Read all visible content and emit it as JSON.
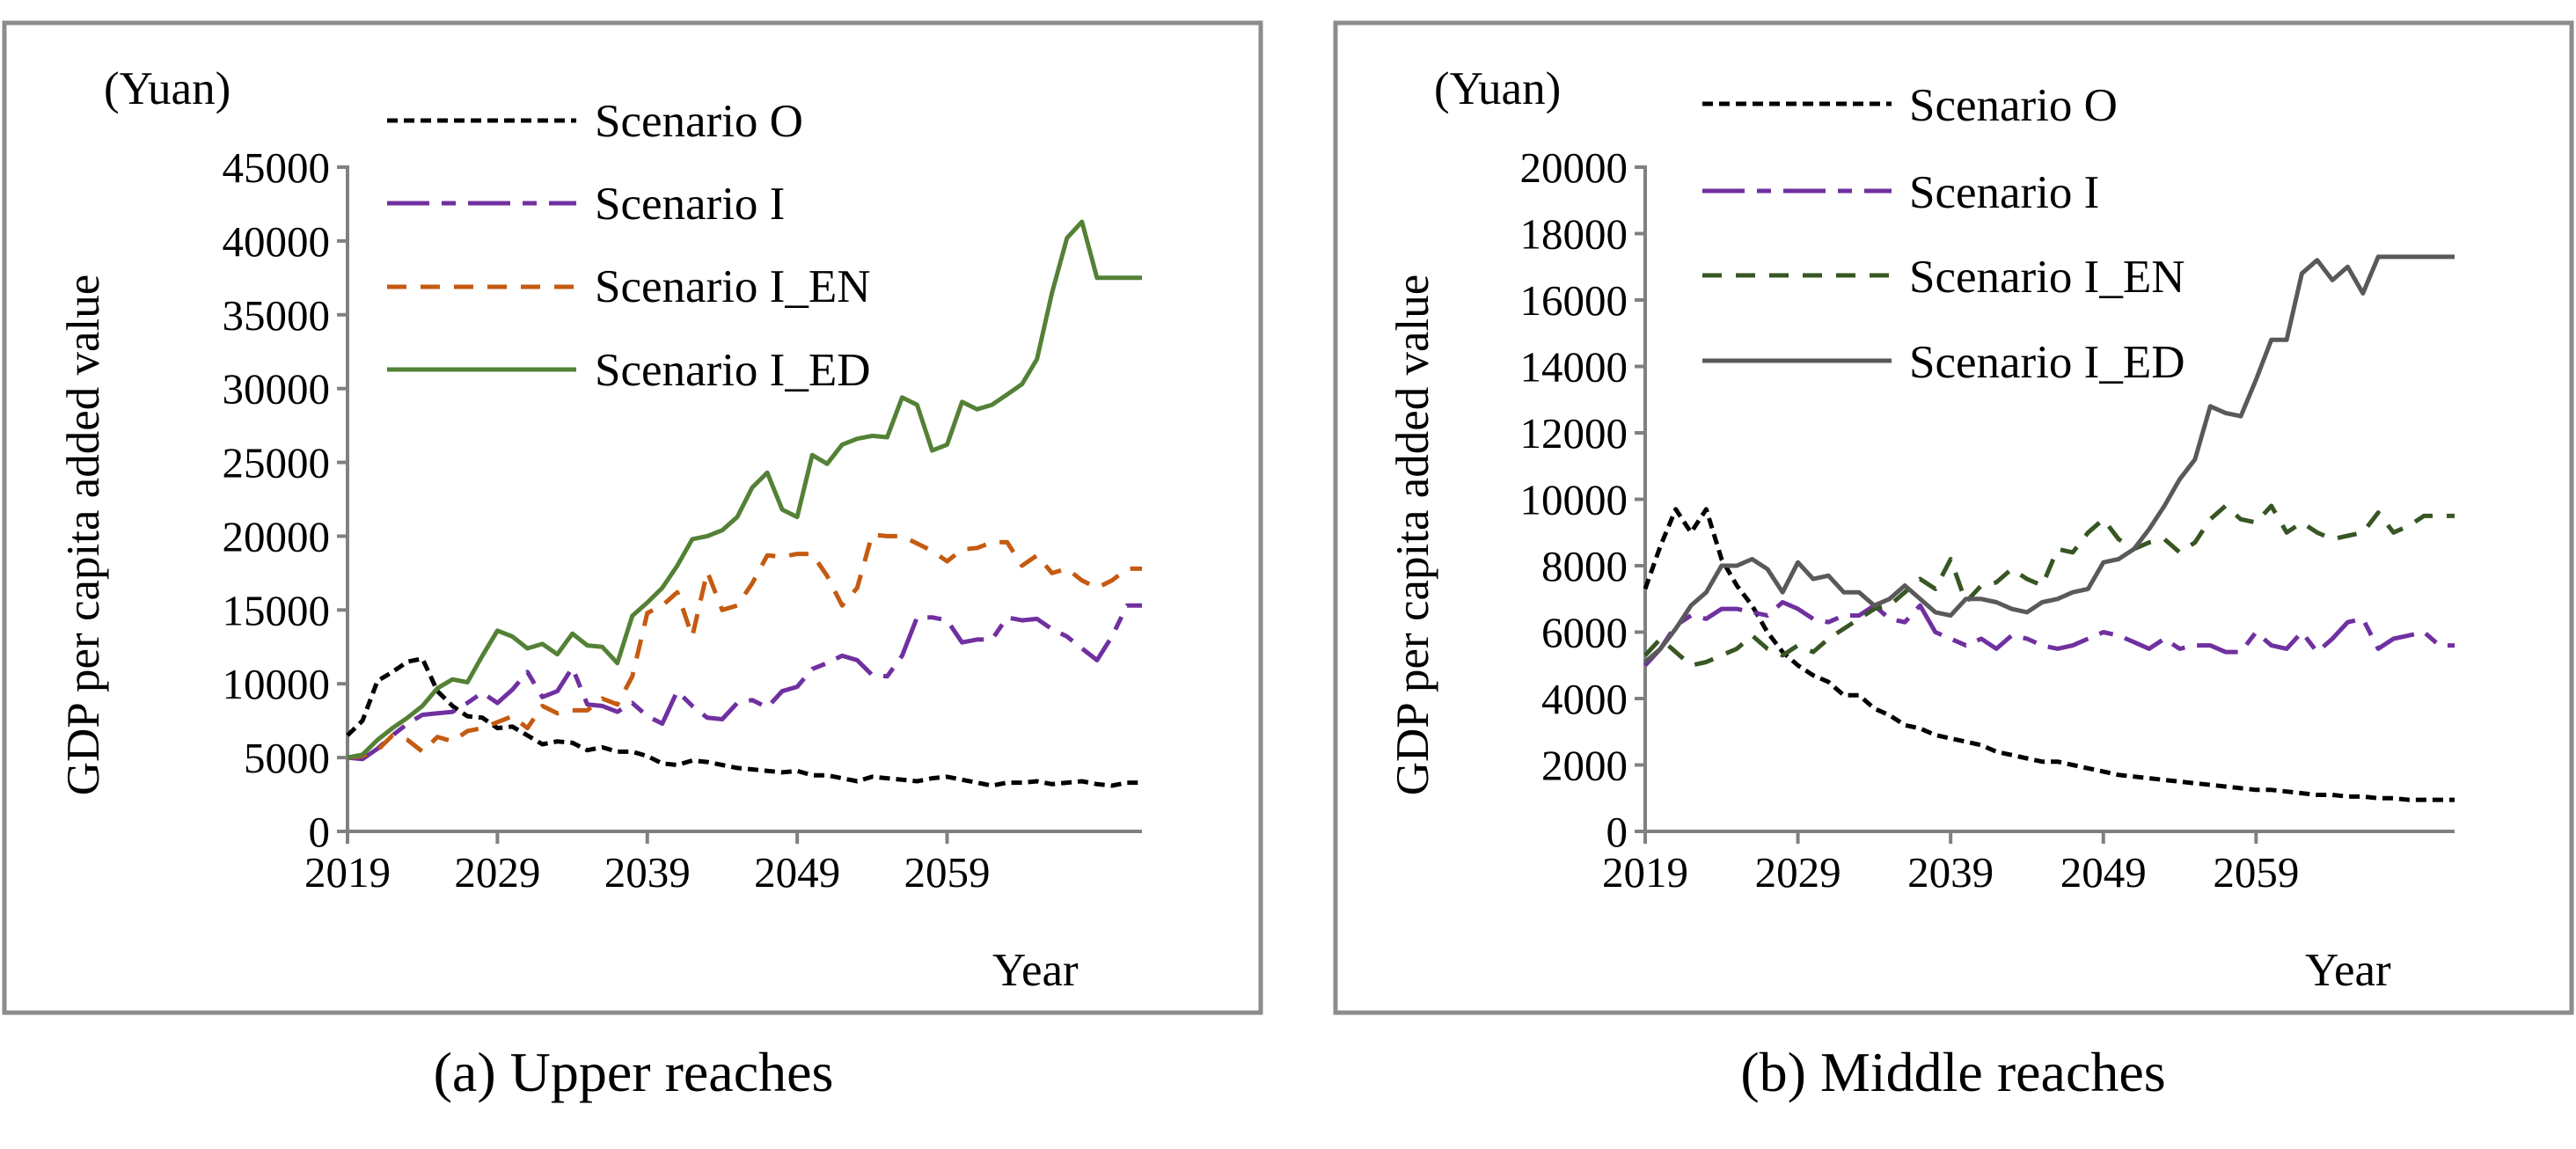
{
  "chart_data": [
    {
      "type": "line",
      "caption": "(a) Upper reaches",
      "unit": "(Yuan)",
      "xlabel": "Year",
      "ylabel": "GDP per capita added value",
      "xlim": [
        2019,
        2072
      ],
      "ylim": [
        0,
        45000
      ],
      "ytick_values": [
        0,
        5000,
        10000,
        15000,
        20000,
        25000,
        30000,
        35000,
        40000,
        45000
      ],
      "ytick_labels": [
        "0",
        "5000",
        "10000",
        "15000",
        "20000",
        "25000",
        "30000",
        "35000",
        "40000",
        "45000"
      ],
      "xtick_values": [
        2019,
        2029,
        2039,
        2049,
        2059
      ],
      "xtick_labels": [
        "2019",
        "2029",
        "2039",
        "2049",
        "2059"
      ],
      "series": [
        {
          "name": "Scenario O",
          "color": "#000000",
          "dash": "dash-short",
          "x": [
            2019,
            2020,
            2021,
            2022,
            2023,
            2024,
            2025,
            2026,
            2027,
            2028,
            2029,
            2030,
            2031,
            2032,
            2033,
            2034,
            2035,
            2036,
            2037,
            2038,
            2039,
            2040,
            2041,
            2042,
            2043,
            2044,
            2045,
            2046,
            2047,
            2048,
            2049,
            2050,
            2051,
            2052,
            2053,
            2054,
            2055,
            2056,
            2057,
            2058,
            2059,
            2060,
            2061,
            2062,
            2063,
            2064,
            2065,
            2066,
            2067,
            2068,
            2069,
            2070,
            2071,
            2072
          ],
          "values": [
            6500,
            7500,
            10200,
            10800,
            11500,
            11700,
            9500,
            8500,
            7800,
            7700,
            7000,
            7100,
            6500,
            5900,
            6100,
            6000,
            5500,
            5700,
            5400,
            5400,
            5100,
            4600,
            4500,
            4800,
            4700,
            4500,
            4300,
            4200,
            4100,
            4000,
            4100,
            3800,
            3800,
            3600,
            3400,
            3700,
            3600,
            3500,
            3400,
            3600,
            3700,
            3500,
            3300,
            3100,
            3300,
            3300,
            3400,
            3200,
            3300,
            3400,
            3200,
            3100,
            3300,
            3300
          ]
        },
        {
          "name": "Scenario I",
          "color": "#7030a0",
          "dash": "dash-long",
          "x": [
            2019,
            2020,
            2021,
            2022,
            2023,
            2024,
            2025,
            2026,
            2027,
            2028,
            2029,
            2030,
            2031,
            2032,
            2033,
            2034,
            2035,
            2036,
            2037,
            2038,
            2039,
            2040,
            2041,
            2042,
            2043,
            2044,
            2045,
            2046,
            2047,
            2048,
            2049,
            2050,
            2051,
            2052,
            2053,
            2054,
            2055,
            2056,
            2057,
            2058,
            2059,
            2060,
            2061,
            2062,
            2063,
            2064,
            2065,
            2066,
            2067,
            2068,
            2069,
            2070,
            2071,
            2072
          ],
          "values": [
            5000,
            4900,
            5600,
            6500,
            7300,
            7900,
            8000,
            8100,
            8700,
            9400,
            8700,
            9600,
            10800,
            9100,
            9500,
            11100,
            8600,
            8500,
            8100,
            8700,
            7800,
            7300,
            9500,
            8500,
            7700,
            7600,
            8700,
            8900,
            8400,
            9500,
            9800,
            11000,
            11400,
            11900,
            11600,
            10600,
            10500,
            11900,
            14500,
            14500,
            14300,
            12800,
            13000,
            13000,
            14500,
            14300,
            14400,
            13700,
            13200,
            12400,
            11600,
            13200,
            15300,
            15300
          ]
        },
        {
          "name": "Scenario I_EN",
          "color": "#c55a11",
          "dash": "dash-medium",
          "x": [
            2019,
            2020,
            2021,
            2022,
            2023,
            2024,
            2025,
            2026,
            2027,
            2028,
            2029,
            2030,
            2031,
            2032,
            2033,
            2034,
            2035,
            2036,
            2037,
            2038,
            2039,
            2040,
            2041,
            2042,
            2043,
            2044,
            2045,
            2046,
            2047,
            2048,
            2049,
            2050,
            2051,
            2052,
            2053,
            2054,
            2055,
            2056,
            2057,
            2058,
            2059,
            2060,
            2061,
            2062,
            2063,
            2064,
            2065,
            2066,
            2067,
            2068,
            2069,
            2070,
            2071,
            2072
          ],
          "values": [
            5000,
            5100,
            5500,
            6500,
            6200,
            5400,
            6400,
            6100,
            6800,
            7000,
            7400,
            7800,
            7000,
            8500,
            8000,
            8200,
            8200,
            9000,
            8600,
            10500,
            14800,
            15300,
            16200,
            13200,
            17600,
            15000,
            15300,
            16800,
            18700,
            18600,
            18800,
            18800,
            17300,
            15300,
            16500,
            20100,
            20000,
            20000,
            19500,
            19000,
            18300,
            19100,
            19200,
            19600,
            19600,
            18000,
            18700,
            17500,
            17800,
            17000,
            16500,
            17000,
            17800,
            17800
          ]
        },
        {
          "name": "Scenario I_ED",
          "color": "#538135",
          "dash": "solid",
          "x": [
            2019,
            2020,
            2021,
            2022,
            2023,
            2024,
            2025,
            2026,
            2027,
            2028,
            2029,
            2030,
            2031,
            2032,
            2033,
            2034,
            2035,
            2036,
            2037,
            2038,
            2039,
            2040,
            2041,
            2042,
            2043,
            2044,
            2045,
            2046,
            2047,
            2048,
            2049,
            2050,
            2051,
            2052,
            2053,
            2054,
            2055,
            2056,
            2057,
            2058,
            2059,
            2060,
            2061,
            2062,
            2063,
            2064,
            2065,
            2066,
            2067,
            2068,
            2069,
            2070,
            2071,
            2072
          ],
          "values": [
            5000,
            5200,
            6200,
            7000,
            7700,
            8500,
            9700,
            10300,
            10100,
            11900,
            13600,
            13200,
            12400,
            12700,
            12000,
            13400,
            12600,
            12500,
            11400,
            14600,
            15500,
            16500,
            18000,
            19800,
            20000,
            20400,
            21300,
            23300,
            24300,
            21800,
            21300,
            25500,
            24900,
            26200,
            26600,
            26800,
            26700,
            29400,
            28900,
            25800,
            26200,
            29100,
            28600,
            28900,
            29600,
            30300,
            32000,
            36500,
            40200,
            41300,
            37500,
            37500,
            37500,
            37500
          ]
        }
      ]
    },
    {
      "type": "line",
      "caption": "(b) Middle reaches",
      "unit": "(Yuan)",
      "xlabel": "Year",
      "ylabel": "GDP per capita added value",
      "xlim": [
        2019,
        2072
      ],
      "ylim": [
        0,
        20000
      ],
      "ytick_values": [
        0,
        2000,
        4000,
        6000,
        8000,
        10000,
        12000,
        14000,
        16000,
        18000,
        20000
      ],
      "ytick_labels": [
        "0",
        "2000",
        "4000",
        "6000",
        "8000",
        "10000",
        "12000",
        "14000",
        "16000",
        "18000",
        "20000"
      ],
      "xtick_values": [
        2019,
        2029,
        2039,
        2049,
        2059
      ],
      "xtick_labels": [
        "2019",
        "2029",
        "2039",
        "2049",
        "2059"
      ],
      "series": [
        {
          "name": "Scenario O",
          "color": "#000000",
          "dash": "dash-short",
          "x": [
            2019,
            2020,
            2021,
            2022,
            2023,
            2024,
            2025,
            2026,
            2027,
            2028,
            2029,
            2030,
            2031,
            2032,
            2033,
            2034,
            2035,
            2036,
            2037,
            2038,
            2039,
            2040,
            2041,
            2042,
            2043,
            2044,
            2045,
            2046,
            2047,
            2048,
            2049,
            2050,
            2051,
            2052,
            2053,
            2054,
            2055,
            2056,
            2057,
            2058,
            2059,
            2060,
            2061,
            2062,
            2063,
            2064,
            2065,
            2066,
            2067,
            2068,
            2069,
            2070,
            2071,
            2072
          ],
          "values": [
            7300,
            8600,
            9700,
            9000,
            9700,
            8200,
            7400,
            6800,
            6000,
            5400,
            5000,
            4700,
            4500,
            4100,
            4100,
            3700,
            3500,
            3200,
            3100,
            2900,
            2800,
            2700,
            2600,
            2400,
            2300,
            2200,
            2100,
            2100,
            2000,
            1900,
            1800,
            1700,
            1650,
            1600,
            1550,
            1500,
            1450,
            1400,
            1350,
            1300,
            1250,
            1250,
            1200,
            1150,
            1100,
            1100,
            1050,
            1050,
            1000,
            1000,
            950,
            950,
            950,
            950
          ]
        },
        {
          "name": "Scenario I",
          "color": "#7030a0",
          "dash": "dash-long",
          "x": [
            2019,
            2020,
            2021,
            2022,
            2023,
            2024,
            2025,
            2026,
            2027,
            2028,
            2029,
            2030,
            2031,
            2032,
            2033,
            2034,
            2035,
            2036,
            2037,
            2038,
            2039,
            2040,
            2041,
            2042,
            2043,
            2044,
            2045,
            2046,
            2047,
            2048,
            2049,
            2050,
            2051,
            2052,
            2053,
            2054,
            2055,
            2056,
            2057,
            2058,
            2059,
            2060,
            2061,
            2062,
            2063,
            2064,
            2065,
            2066,
            2067,
            2068,
            2069,
            2070,
            2071,
            2072
          ],
          "values": [
            5000,
            5500,
            6200,
            6500,
            6400,
            6700,
            6700,
            6600,
            6500,
            6900,
            6700,
            6400,
            6300,
            6500,
            6500,
            6800,
            6400,
            6300,
            6800,
            6000,
            5800,
            5600,
            5800,
            5500,
            5900,
            5800,
            5600,
            5500,
            5600,
            5800,
            6000,
            5900,
            5700,
            5500,
            5800,
            5500,
            5600,
            5600,
            5400,
            5400,
            6000,
            5600,
            5500,
            6000,
            5400,
            5800,
            6300,
            6400,
            5500,
            5800,
            5900,
            6000,
            5600,
            5600
          ]
        },
        {
          "name": "Scenario I_EN",
          "color": "#375623",
          "dash": "dash-medium",
          "x": [
            2019,
            2020,
            2021,
            2022,
            2023,
            2024,
            2025,
            2026,
            2027,
            2028,
            2029,
            2030,
            2031,
            2032,
            2033,
            2034,
            2035,
            2036,
            2037,
            2038,
            2039,
            2040,
            2041,
            2042,
            2043,
            2044,
            2045,
            2046,
            2047,
            2048,
            2049,
            2050,
            2051,
            2052,
            2053,
            2054,
            2055,
            2056,
            2057,
            2058,
            2059,
            2060,
            2061,
            2062,
            2063,
            2064,
            2065,
            2066,
            2067,
            2068,
            2069,
            2070,
            2071,
            2072
          ],
          "values": [
            5300,
            5800,
            5400,
            5000,
            5100,
            5300,
            5500,
            5900,
            5500,
            5300,
            5600,
            5400,
            5800,
            6100,
            6400,
            6700,
            6800,
            7200,
            7600,
            7300,
            8200,
            6900,
            7400,
            7500,
            7900,
            7600,
            7400,
            8500,
            8400,
            9000,
            9400,
            8800,
            8500,
            8700,
            8800,
            8400,
            8700,
            9400,
            9800,
            9400,
            9300,
            9800,
            9000,
            9300,
            9000,
            8800,
            8900,
            9000,
            9600,
            9000,
            9200,
            9500,
            9500,
            9500
          ]
        },
        {
          "name": "Scenario I_ED",
          "color": "#595959",
          "dash": "solid",
          "x": [
            2019,
            2020,
            2021,
            2022,
            2023,
            2024,
            2025,
            2026,
            2027,
            2028,
            2029,
            2030,
            2031,
            2032,
            2033,
            2034,
            2035,
            2036,
            2037,
            2038,
            2039,
            2040,
            2041,
            2042,
            2043,
            2044,
            2045,
            2046,
            2047,
            2048,
            2049,
            2050,
            2051,
            2052,
            2053,
            2054,
            2055,
            2056,
            2057,
            2058,
            2059,
            2060,
            2061,
            2062,
            2063,
            2064,
            2065,
            2066,
            2067,
            2068,
            2069,
            2070,
            2071,
            2072
          ],
          "values": [
            5100,
            5500,
            6100,
            6800,
            7200,
            8000,
            8000,
            8200,
            7900,
            7200,
            8100,
            7600,
            7700,
            7200,
            7200,
            6800,
            7000,
            7400,
            7000,
            6600,
            6500,
            7000,
            7000,
            6900,
            6700,
            6600,
            6900,
            7000,
            7200,
            7300,
            8100,
            8200,
            8500,
            9100,
            9800,
            10600,
            11200,
            12800,
            12600,
            12500,
            13600,
            14800,
            14800,
            16800,
            17200,
            16600,
            17000,
            16200,
            17300,
            17300,
            17300,
            17300,
            17300,
            17300
          ]
        }
      ]
    }
  ]
}
